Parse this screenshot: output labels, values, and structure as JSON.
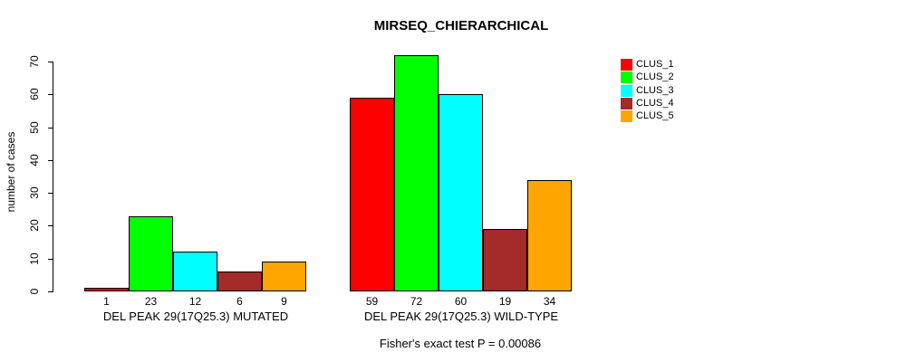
{
  "chart_data": {
    "type": "bar",
    "title": "MIRSEQ_CHIERARCHICAL",
    "ylabel": "number of cases",
    "xlabel": "",
    "caption": "Fisher's exact test P = 0.00086",
    "ylim": [
      0,
      70
    ],
    "yticks": [
      0,
      10,
      20,
      30,
      40,
      50,
      60,
      70
    ],
    "grid": false,
    "legend_position": "right-outside",
    "categories": [
      "DEL PEAK 29(17Q25.3) MUTATED",
      "DEL PEAK 29(17Q25.3) WILD-TYPE"
    ],
    "series": [
      {
        "name": "CLUS_1",
        "color": "#FF0000",
        "values": [
          1,
          59
        ]
      },
      {
        "name": "CLUS_2",
        "color": "#00FF00",
        "values": [
          23,
          72
        ]
      },
      {
        "name": "CLUS_3",
        "color": "#00FFFF",
        "values": [
          12,
          60
        ]
      },
      {
        "name": "CLUS_4",
        "color": "#A52A2A",
        "values": [
          6,
          19
        ]
      },
      {
        "name": "CLUS_5",
        "color": "#FFA500",
        "values": [
          9,
          34
        ]
      }
    ],
    "bar_outline_color": "#000000"
  }
}
